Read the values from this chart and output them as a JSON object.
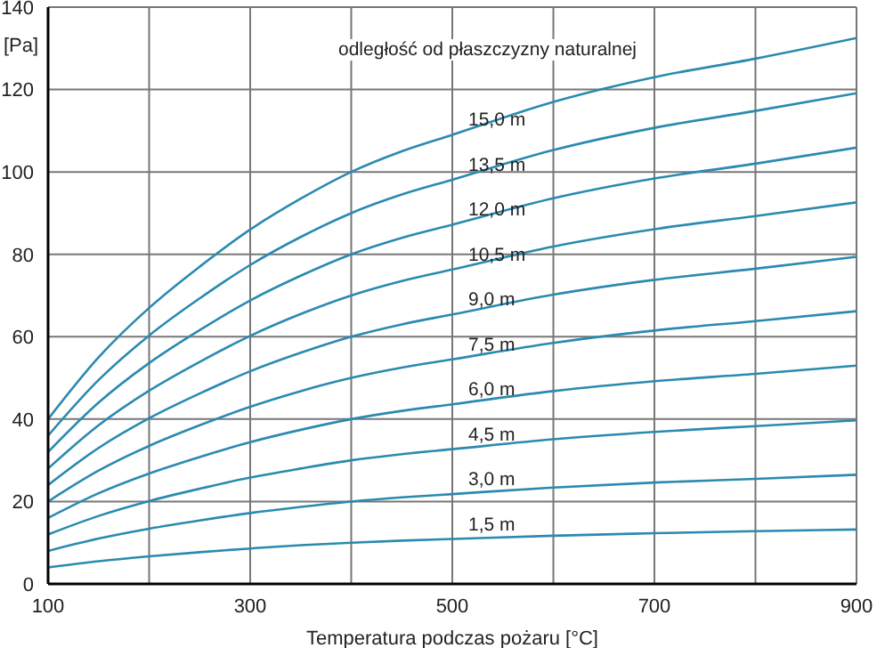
{
  "chart_data": {
    "type": "line",
    "xlabel": "Temperatura podczas pożaru [°C]",
    "ylabel": "[Pa]",
    "legend_title": "odległość od płaszczyzny naturalnej",
    "x": [
      100,
      150,
      200,
      250,
      300,
      350,
      400,
      450,
      500,
      600,
      700,
      800,
      900
    ],
    "xlim": [
      100,
      900
    ],
    "xticks": [
      100,
      {
        "value": 200,
        "label": null
      },
      300,
      {
        "value": 400,
        "label": null
      },
      500,
      {
        "value": 600,
        "label": null
      },
      700,
      {
        "value": 800,
        "label": null
      },
      900
    ],
    "ylim": [
      0,
      140
    ],
    "yticks": [
      0,
      20,
      40,
      60,
      80,
      100,
      120,
      140
    ],
    "grid": true,
    "marker": "none",
    "line_style": "solid",
    "series": [
      {
        "name": "1,5 m",
        "color": "#2a8ab0",
        "values": [
          4,
          5.5,
          6.7,
          7.7,
          8.6,
          9.4,
          10,
          10.5,
          10.9,
          11.7,
          12.3,
          12.8,
          13.2
        ]
      },
      {
        "name": "3,0 m",
        "color": "#2a8ab0",
        "values": [
          8,
          11,
          13.4,
          15.4,
          17.2,
          18.7,
          20,
          21,
          21.8,
          23.4,
          24.6,
          25.5,
          26.5
        ]
      },
      {
        "name": "4,5 m",
        "color": "#2a8ab0",
        "values": [
          12,
          16.5,
          20.1,
          23.1,
          25.8,
          28,
          30,
          31.5,
          32.7,
          35.1,
          36.9,
          38.3,
          39.7
        ]
      },
      {
        "name": "6,0 m",
        "color": "#2a8ab0",
        "values": [
          16,
          22,
          26.8,
          30.8,
          34.4,
          37.4,
          40,
          42,
          43.6,
          46.8,
          49.2,
          51,
          53
        ]
      },
      {
        "name": "7,5 m",
        "color": "#2a8ab0",
        "values": [
          20,
          27.5,
          33.5,
          38.5,
          43,
          46.8,
          50,
          52.5,
          54.5,
          58.5,
          61.5,
          63.8,
          66.2
        ]
      },
      {
        "name": "9,0 m",
        "color": "#2a8ab0",
        "values": [
          24,
          33,
          40.2,
          46.2,
          51.6,
          56.1,
          60,
          63,
          65.4,
          70.2,
          73.8,
          76.5,
          79.4
        ]
      },
      {
        "name": "10,5 m",
        "color": "#2a8ab0",
        "values": [
          28,
          38.5,
          46.9,
          53.9,
          60.2,
          65.5,
          70,
          73.5,
          76.3,
          81.9,
          86.1,
          89.3,
          92.6
        ]
      },
      {
        "name": "12,0 m",
        "color": "#2a8ab0",
        "values": [
          32,
          44,
          53.6,
          61.6,
          68.8,
          74.8,
          80,
          84,
          87.2,
          93.6,
          98.4,
          102,
          105.9
        ]
      },
      {
        "name": "13,5 m",
        "color": "#2a8ab0",
        "values": [
          36,
          49.5,
          60.3,
          69.3,
          77.4,
          84.2,
          90,
          94.5,
          98.1,
          105.3,
          110.7,
          114.8,
          119.1
        ]
      },
      {
        "name": "15,0 m",
        "color": "#2a8ab0",
        "values": [
          40,
          55,
          67,
          77,
          86,
          93.5,
          100,
          105,
          109,
          117,
          123,
          127.5,
          132.5
        ]
      }
    ]
  }
}
